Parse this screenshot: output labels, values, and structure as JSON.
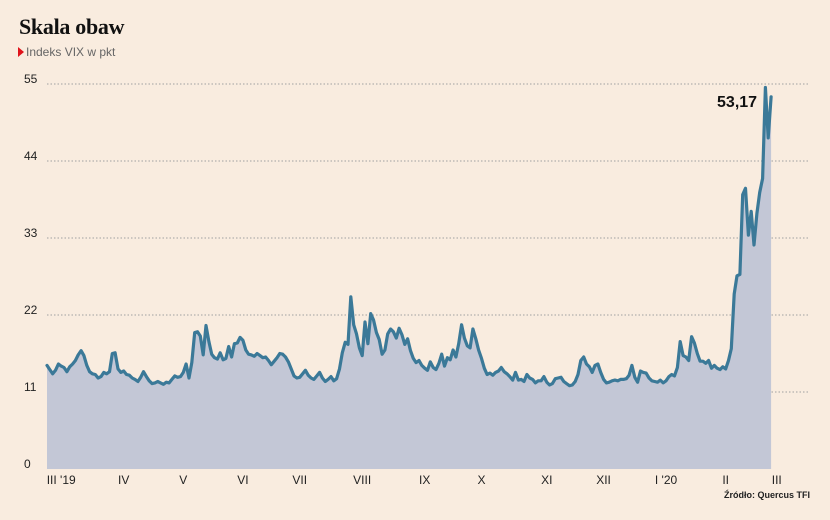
{
  "title": "Skala obaw",
  "subtitle": "Indeks VIX w pkt",
  "source": "Źródło: Quercus TFI",
  "colors": {
    "line": "#3b7998",
    "area": "#c3c7d6",
    "background": "#f9ecdf",
    "marker": "#e0131b"
  },
  "chart_data": {
    "type": "area",
    "title": "Skala obaw",
    "subtitle": "Indeks VIX w pkt",
    "ylim": [
      0,
      55
    ],
    "yticks": [
      0,
      11,
      22,
      33,
      44,
      55
    ],
    "xlim": [
      0,
      268
    ],
    "month_labels": [
      {
        "x": 5,
        "label": "III '19"
      },
      {
        "x": 27,
        "label": "IV"
      },
      {
        "x": 48,
        "label": "V"
      },
      {
        "x": 69,
        "label": "VI"
      },
      {
        "x": 89,
        "label": "VII"
      },
      {
        "x": 111,
        "label": "VIII"
      },
      {
        "x": 133,
        "label": "IX"
      },
      {
        "x": 153,
        "label": "X"
      },
      {
        "x": 176,
        "label": "XI"
      },
      {
        "x": 196,
        "label": "XII"
      },
      {
        "x": 218,
        "label": "I '20"
      },
      {
        "x": 239,
        "label": "II"
      },
      {
        "x": 257,
        "label": "III"
      }
    ],
    "annotation": {
      "label": "53,17",
      "value": 53.17
    },
    "y": [
      14.8,
      14.2,
      13.6,
      14.1,
      15.0,
      14.7,
      14.5,
      13.9,
      14.6,
      15.0,
      15.5,
      16.3,
      16.9,
      16.2,
      14.8,
      13.9,
      13.6,
      13.5,
      13.0,
      13.2,
      13.8,
      13.6,
      13.9,
      16.5,
      16.6,
      14.3,
      13.8,
      14.0,
      13.5,
      13.4,
      13.0,
      12.8,
      12.5,
      13.1,
      13.9,
      13.2,
      12.6,
      12.2,
      12.3,
      12.5,
      12.3,
      12.1,
      12.4,
      12.3,
      12.8,
      13.3,
      13.1,
      13.2,
      13.8,
      15.0,
      13.0,
      15.2,
      19.5,
      19.6,
      19.0,
      16.3,
      20.5,
      18.2,
      16.4,
      15.9,
      15.7,
      16.6,
      15.6,
      15.8,
      17.5,
      16.0,
      17.9,
      18.0,
      18.8,
      18.4,
      17.0,
      16.4,
      16.3,
      16.1,
      16.5,
      16.2,
      15.9,
      16.0,
      15.5,
      14.9,
      15.4,
      15.9,
      16.5,
      16.4,
      16.0,
      15.3,
      14.3,
      13.3,
      13.0,
      13.1,
      13.6,
      14.1,
      13.4,
      13.0,
      12.8,
      13.3,
      13.8,
      13.0,
      12.5,
      12.8,
      13.2,
      12.6,
      12.9,
      14.3,
      16.6,
      18.1,
      17.8,
      24.6,
      20.6,
      19.3,
      17.3,
      16.2,
      21.0,
      17.9,
      22.2,
      21.3,
      19.5,
      18.5,
      16.4,
      17.0,
      19.3,
      20.0,
      19.6,
      18.7,
      20.1,
      19.2,
      17.8,
      18.6,
      16.9,
      15.8,
      15.2,
      15.5,
      14.8,
      14.4,
      14.1,
      15.3,
      14.5,
      14.2,
      15.1,
      16.4,
      14.7,
      15.9,
      15.6,
      17.0,
      16.0,
      17.9,
      20.6,
      18.7,
      17.6,
      17.3,
      20.0,
      18.6,
      17.0,
      15.8,
      14.4,
      13.5,
      13.7,
      13.4,
      13.8,
      14.0,
      14.5,
      13.9,
      13.6,
      13.2,
      12.7,
      13.8,
      12.7,
      12.8,
      12.5,
      13.5,
      13.0,
      12.8,
      12.3,
      12.6,
      12.6,
      13.2,
      12.4,
      12.0,
      12.2,
      12.9,
      13.0,
      13.1,
      12.5,
      12.2,
      11.9,
      12.0,
      12.5,
      13.5,
      15.5,
      16.0,
      15.0,
      14.6,
      13.8,
      14.8,
      15.0,
      13.8,
      12.8,
      12.3,
      12.4,
      12.6,
      12.7,
      12.6,
      12.8,
      12.8,
      12.9,
      13.4,
      14.8,
      13.1,
      12.4,
      14.0,
      13.8,
      13.7,
      13.0,
      12.6,
      12.5,
      12.4,
      12.7,
      12.3,
      12.6,
      13.2,
      13.5,
      13.3,
      14.5,
      18.2,
      16.2,
      16.0,
      15.5,
      18.9,
      18.0,
      16.5,
      15.4,
      15.4,
      15.1,
      15.5,
      14.4,
      14.8,
      14.4,
      14.2,
      14.6,
      14.3,
      15.5,
      17.2,
      25.0,
      27.6,
      27.8,
      39.2,
      40.1,
      33.4,
      36.8,
      32.0,
      36.5,
      39.5,
      41.5,
      54.5,
      47.3,
      53.17
    ]
  }
}
